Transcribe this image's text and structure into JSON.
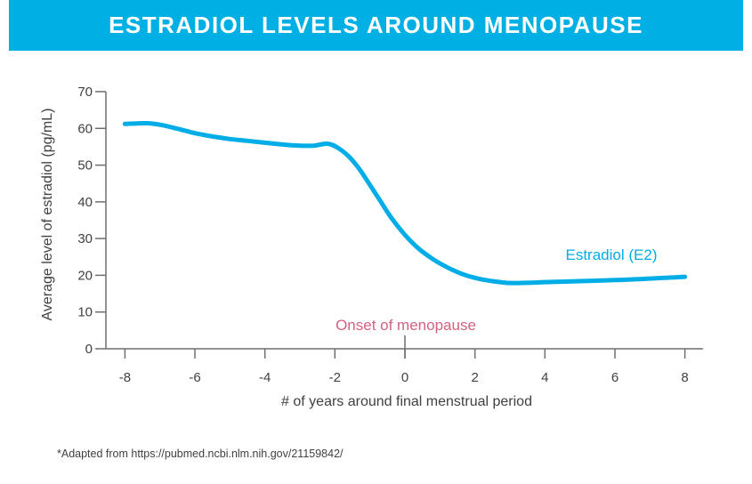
{
  "header": {
    "title": "ESTRADIOL LEVELS AROUND MENOPAUSE",
    "bg_color": "#00AFE3",
    "text_color": "#ffffff"
  },
  "footer": {
    "attribution": "*Adapted from https://pubmed.ncbi.nlm.nih.gov/21159842/"
  },
  "chart_data": {
    "type": "line",
    "title": "ESTRADIOL LEVELS AROUND MENOPAUSE",
    "xlabel": "# of years around final menstrual period",
    "ylabel": "Average level of estradiol (pg/mL)",
    "xlim": [
      -8.5,
      8.5
    ],
    "ylim": [
      0,
      70
    ],
    "xticks": [
      -8,
      -6,
      -4,
      -2,
      0,
      2,
      4,
      6,
      8
    ],
    "yticks": [
      0,
      10,
      20,
      30,
      40,
      50,
      60,
      70
    ],
    "grid": false,
    "legend_position": "inline-right",
    "axis_color": "#6d6e71",
    "text_color": "#414042",
    "series": [
      {
        "name": "Estradiol (E2)",
        "color": "#00ADE6",
        "points": [
          [
            -8,
            61.2
          ],
          [
            -7.4,
            61.4
          ],
          [
            -7,
            61.0
          ],
          [
            -6.5,
            59.9
          ],
          [
            -6,
            58.7
          ],
          [
            -5.5,
            57.8
          ],
          [
            -5,
            57.1
          ],
          [
            -4.5,
            56.6
          ],
          [
            -4,
            56.1
          ],
          [
            -3.5,
            55.6
          ],
          [
            -3,
            55.3
          ],
          [
            -2.6,
            55.3
          ],
          [
            -2.2,
            55.8
          ],
          [
            -1.9,
            54.6
          ],
          [
            -1.6,
            52.3
          ],
          [
            -1.3,
            48.9
          ],
          [
            -1,
            44.6
          ],
          [
            -0.7,
            40.2
          ],
          [
            -0.4,
            35.8
          ],
          [
            0,
            31.0
          ],
          [
            0.4,
            27.2
          ],
          [
            0.8,
            24.4
          ],
          [
            1.2,
            22.2
          ],
          [
            1.6,
            20.5
          ],
          [
            2,
            19.3
          ],
          [
            2.5,
            18.4
          ],
          [
            3,
            17.9
          ],
          [
            3.6,
            18.0
          ],
          [
            4.2,
            18.2
          ],
          [
            5,
            18.4
          ],
          [
            6,
            18.7
          ],
          [
            7,
            19.1
          ],
          [
            8,
            19.6
          ]
        ]
      }
    ],
    "annotations": [
      {
        "text": "Onset of menopause",
        "x": 0,
        "color": "#D4627F"
      }
    ]
  }
}
